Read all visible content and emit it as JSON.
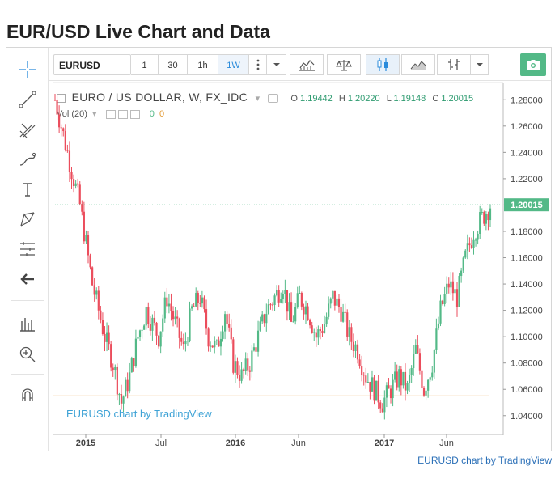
{
  "page": {
    "title": "EUR/USD Live Chart and Data"
  },
  "toolbar": {
    "symbol": "EURUSD",
    "timeframes": [
      "1",
      "30",
      "1h",
      "1W"
    ],
    "active_timeframe": "1W"
  },
  "legend": {
    "symbol_desc": "EURO / US DOLLAR, W, FX_IDC",
    "open_label": "O",
    "open": "1.19442",
    "high_label": "H",
    "high": "1.20220",
    "low_label": "L",
    "low": "1.19148",
    "close_label": "C",
    "close": "1.20015",
    "vol_label": "Vol (20)",
    "vol_a": "0",
    "vol_b": "0"
  },
  "watermark": "EURUSD chart by TradingView",
  "footer_link": "EURUSD chart by TradingView",
  "colors": {
    "up": "#53b987",
    "down": "#eb4d5c",
    "accent": "#2a8bdb",
    "support": "#e39a35"
  },
  "chart_data": {
    "type": "candlestick",
    "title": "",
    "y_ticks": [
      "1.28000",
      "1.26000",
      "1.24000",
      "1.22000",
      "1.20000",
      "1.18000",
      "1.16000",
      "1.14000",
      "1.12000",
      "1.10000",
      "1.08000",
      "1.06000",
      "1.04000"
    ],
    "ylim": [
      1.028,
      1.29
    ],
    "x_ticks": [
      "2015",
      "Jul",
      "2016",
      "Jun",
      "2017",
      "Jun"
    ],
    "last_price": "1.20015",
    "support_level": 1.055,
    "series": [
      {
        "name": "EURUSD",
        "anchors": [
          [
            0,
            1.28
          ],
          [
            6,
            1.24
          ],
          [
            12,
            1.2
          ],
          [
            18,
            1.14
          ],
          [
            24,
            1.1
          ],
          [
            28,
            1.08
          ],
          [
            32,
            1.05
          ],
          [
            36,
            1.07
          ],
          [
            40,
            1.1
          ],
          [
            44,
            1.12
          ],
          [
            50,
            1.1
          ],
          [
            54,
            1.13
          ],
          [
            58,
            1.11
          ],
          [
            62,
            1.09
          ],
          [
            66,
            1.12
          ],
          [
            70,
            1.13
          ],
          [
            74,
            1.1
          ],
          [
            78,
            1.09
          ],
          [
            82,
            1.12
          ],
          [
            86,
            1.08
          ],
          [
            90,
            1.07
          ],
          [
            94,
            1.08
          ],
          [
            98,
            1.1
          ],
          [
            102,
            1.12
          ],
          [
            106,
            1.13
          ],
          [
            110,
            1.14
          ],
          [
            114,
            1.11
          ],
          [
            118,
            1.13
          ],
          [
            122,
            1.12
          ],
          [
            126,
            1.1
          ],
          [
            130,
            1.11
          ],
          [
            134,
            1.13
          ],
          [
            138,
            1.12
          ],
          [
            142,
            1.1
          ],
          [
            146,
            1.09
          ],
          [
            150,
            1.07
          ],
          [
            154,
            1.06
          ],
          [
            158,
            1.05
          ],
          [
            162,
            1.06
          ],
          [
            166,
            1.07
          ],
          [
            170,
            1.06
          ],
          [
            174,
            1.09
          ],
          [
            178,
            1.06
          ],
          [
            182,
            1.08
          ],
          [
            186,
            1.12
          ],
          [
            190,
            1.14
          ],
          [
            194,
            1.13
          ],
          [
            198,
            1.16
          ],
          [
            202,
            1.18
          ],
          [
            206,
            1.19
          ],
          [
            210,
            1.2
          ]
        ]
      }
    ]
  }
}
